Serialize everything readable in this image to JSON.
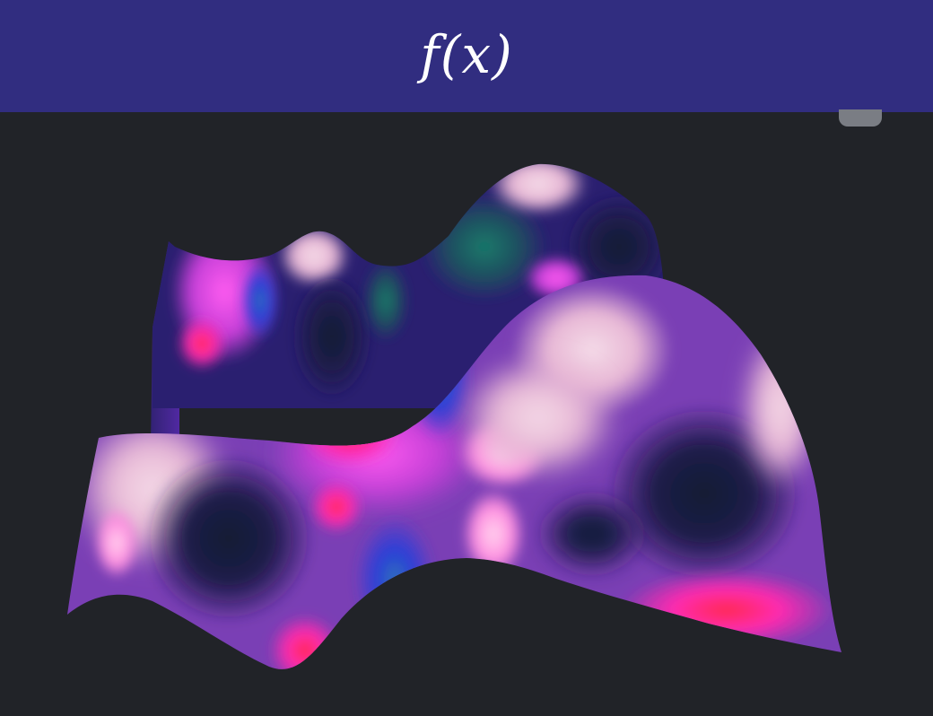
{
  "header": {
    "title": "f(x)"
  },
  "colors": {
    "background": "#212328",
    "header": "#312d80",
    "title": "#ffffff",
    "scrollbar_thumb": "#7a7d84"
  },
  "surface_plot": {
    "type": "3d-surface",
    "colormap": [
      "#161a3a",
      "#2f3bd6",
      "#b83cd4",
      "#ff2a55",
      "#ff7bd0",
      "#f3d7e6"
    ]
  }
}
